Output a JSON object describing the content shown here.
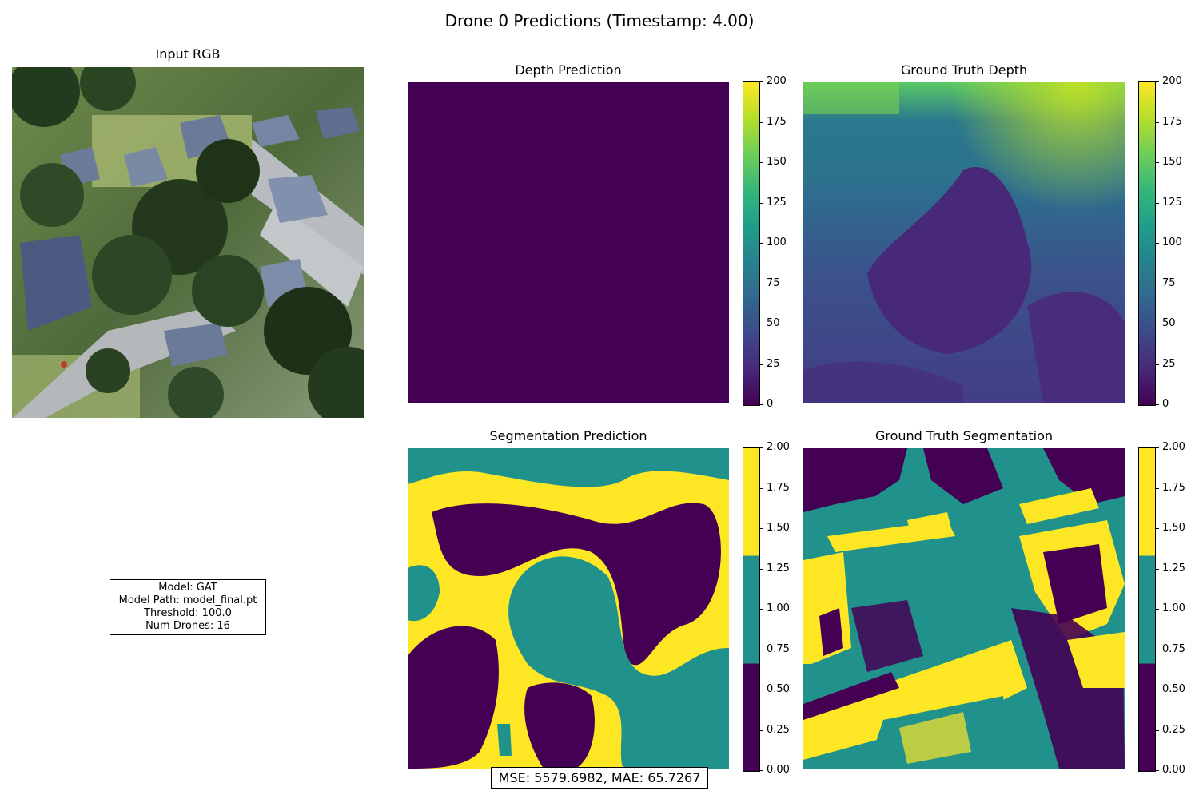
{
  "figure": {
    "title": "Drone 0 Predictions (Timestamp: 4.00)"
  },
  "panels": {
    "input_rgb": {
      "title": "Input RGB"
    },
    "depth_pred": {
      "title": "Depth Prediction"
    },
    "gt_depth": {
      "title": "Ground Truth Depth"
    },
    "seg_pred": {
      "title": "Segmentation Prediction"
    },
    "gt_seg": {
      "title": "Ground Truth Segmentation"
    }
  },
  "info_box": {
    "model": "Model: GAT",
    "model_path": "Model Path: model_final.pt",
    "threshold": "Threshold: 100.0",
    "num_drones": "Num Drones: 16"
  },
  "metrics": "MSE: 5579.6982, MAE: 65.7267",
  "chart_data": [
    {
      "type": "heatmap",
      "title": "Depth Prediction",
      "colormap": "viridis",
      "vmin": 0,
      "vmax": 200,
      "colorbar_ticks": [
        "0",
        "25",
        "50",
        "75",
        "100",
        "125",
        "150",
        "175",
        "200"
      ],
      "uniform_value": 0
    },
    {
      "type": "heatmap",
      "title": "Ground Truth Depth",
      "colormap": "viridis",
      "vmin": 0,
      "vmax": 200,
      "colorbar_ticks": [
        "0",
        "25",
        "50",
        "75",
        "100",
        "125",
        "150",
        "175",
        "200"
      ]
    },
    {
      "type": "heatmap",
      "title": "Segmentation Prediction",
      "colormap": "viridis (3 discrete classes)",
      "vmin": 0,
      "vmax": 2,
      "classes": [
        0,
        1,
        2
      ],
      "colorbar_ticks": [
        "0.00",
        "0.25",
        "0.50",
        "0.75",
        "1.00",
        "1.25",
        "1.50",
        "1.75",
        "2.00"
      ]
    },
    {
      "type": "heatmap",
      "title": "Ground Truth Segmentation",
      "colormap": "viridis (3 discrete classes)",
      "vmin": 0,
      "vmax": 2,
      "classes": [
        0,
        1,
        2
      ],
      "colorbar_ticks": [
        "0.00",
        "0.25",
        "0.50",
        "0.75",
        "1.00",
        "1.25",
        "1.50",
        "1.75",
        "2.00"
      ]
    }
  ],
  "colors": {
    "viridis_0": "#440154",
    "viridis_mid": "#21918c",
    "viridis_max": "#fde725"
  }
}
